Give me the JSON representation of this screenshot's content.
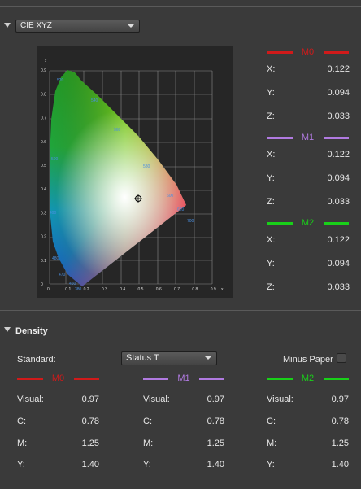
{
  "colors": {
    "m0": "#d01a1a",
    "m1": "#b07ae0",
    "m2": "#19d019"
  },
  "cie": {
    "dropdown": "CIE XYZ",
    "axis_x": "x",
    "axis_y": "y",
    "x_ticks": [
      "0",
      "0.1",
      "0.2",
      "0.3",
      "0.4",
      "0.5",
      "0.6",
      "0.7",
      "0.8",
      "0.9"
    ],
    "y_ticks": [
      "0",
      "0.1",
      "0.2",
      "0.3",
      "0.4",
      "0.5",
      "0.6",
      "0.7",
      "0.8",
      "0.9"
    ],
    "wavelengths": [
      "520",
      "540",
      "560",
      "500",
      "580",
      "490",
      "600",
      "620",
      "700",
      "480",
      "470",
      "460",
      "380"
    ],
    "markers": [
      {
        "name": "M0",
        "x": "0.122",
        "y": "0.094",
        "z": "0.033"
      },
      {
        "name": "M1",
        "x": "0.122",
        "y": "0.094",
        "z": "0.033"
      },
      {
        "name": "M2",
        "x": "0.122",
        "y": "0.094",
        "z": "0.033"
      }
    ],
    "labels": {
      "x": "X:",
      "y": "Y:",
      "z": "Z:"
    }
  },
  "density": {
    "heading": "Density",
    "standard_label": "Standard:",
    "standard_value": "Status T",
    "minus_paper": "Minus Paper",
    "labels": {
      "visual": "Visual:",
      "c": "C:",
      "m": "M:",
      "y": "Y:"
    },
    "markers": [
      {
        "name": "M0",
        "visual": "0.97",
        "c": "0.78",
        "m": "1.25",
        "y": "1.40"
      },
      {
        "name": "M1",
        "visual": "0.97",
        "c": "0.78",
        "m": "1.25",
        "y": "1.40"
      },
      {
        "name": "M2",
        "visual": "0.97",
        "c": "0.78",
        "m": "1.25",
        "y": "1.40"
      }
    ]
  }
}
